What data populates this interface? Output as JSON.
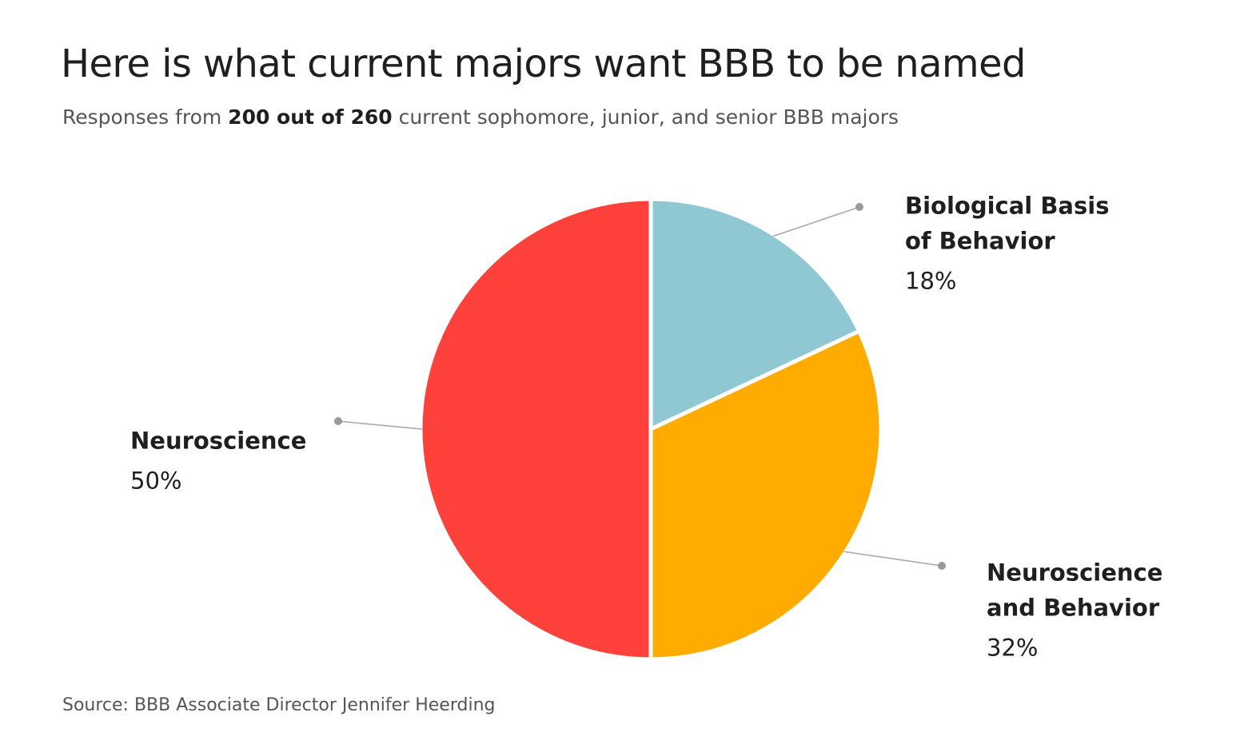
{
  "header": {
    "title": "Here is what current majors want BBB to be named",
    "subtitle_pre": "Responses from ",
    "subtitle_bold": "200 out of 260",
    "subtitle_post": " current sophomore, junior, and senior BBB majors"
  },
  "footer": {
    "source": "Source: BBB Associate Director Jennifer Heerding"
  },
  "chart_data": {
    "type": "pie",
    "title": "Here is what current majors want BBB to be named",
    "subtitle": "Responses from 200 out of 260 current sophomore, junior, and senior BBB majors",
    "slices": [
      {
        "label_lines": [
          "Biological Basis",
          "of Behavior"
        ],
        "value": 18,
        "value_label": "18%",
        "color": "#8fc8d3"
      },
      {
        "label_lines": [
          "Neuroscience",
          "and Behavior"
        ],
        "value": 32,
        "value_label": "32%",
        "color": "#ffab00"
      },
      {
        "label_lines": [
          "Neuroscience"
        ],
        "value": 50,
        "value_label": "50%",
        "color": "#fe413b"
      }
    ],
    "start_angle": "12 o'clock",
    "direction": "clockwise",
    "labels": "outside with leader lines",
    "legend": "none"
  }
}
